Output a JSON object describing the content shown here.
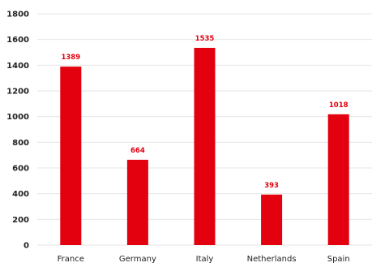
{
  "chart_data": {
    "type": "bar",
    "categories": [
      "France",
      "Germany",
      "Italy",
      "Netherlands",
      "Spain"
    ],
    "values": [
      1389,
      664,
      1535,
      393,
      1018
    ],
    "data_labels": [
      "1389",
      "664",
      "1535",
      "393",
      "1018"
    ],
    "ylim": [
      0,
      1800
    ],
    "yticks": [
      0,
      200,
      400,
      600,
      800,
      1000,
      1200,
      1400,
      1600,
      1800
    ],
    "ytick_labels": [
      "0",
      "200",
      "400",
      "600",
      "800",
      "1000",
      "1200",
      "1400",
      "1600",
      "1800"
    ],
    "grid": true,
    "legend": "none",
    "colors": {
      "bar": "#e3000f",
      "data_label": "#e3000f",
      "grid": "#e6e6e6"
    }
  }
}
